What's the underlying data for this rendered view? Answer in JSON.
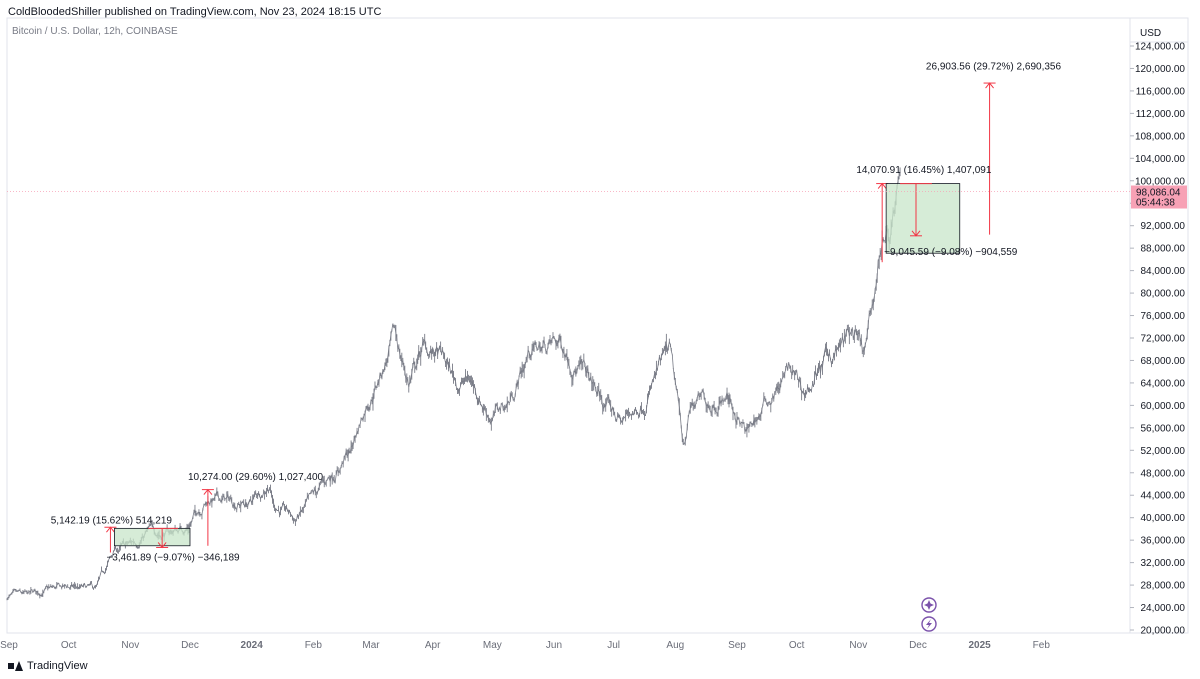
{
  "header": {
    "publisher_line": "ColdBloodedShiller published on TradingView.com, Nov 23, 2024 18:15 UTC",
    "symbol_line": "Bitcoin / U.S. Dollar, 12h, COINBASE"
  },
  "footer": {
    "brand": "TradingView"
  },
  "chart_data": {
    "type": "line",
    "currency_label": "USD",
    "ylim": [
      20000,
      124000
    ],
    "y_ticks": [
      "20,000.00",
      "24,000.00",
      "28,000.00",
      "32,000.00",
      "36,000.00",
      "40,000.00",
      "44,000.00",
      "48,000.00",
      "52,000.00",
      "56,000.00",
      "60,000.00",
      "64,000.00",
      "68,000.00",
      "72,000.00",
      "76,000.00",
      "80,000.00",
      "84,000.00",
      "88,000.00",
      "92,000.00",
      "96,000.00",
      "100,000.00",
      "104,000.00",
      "108,000.00",
      "112,000.00",
      "116,000.00",
      "120,000.00",
      "124,000.00"
    ],
    "x_ticks": [
      {
        "label": "Sep",
        "date": "2023-09-01"
      },
      {
        "label": "Oct",
        "date": "2023-10-01"
      },
      {
        "label": "Nov",
        "date": "2023-11-01"
      },
      {
        "label": "Dec",
        "date": "2023-12-01"
      },
      {
        "label": "2024",
        "date": "2024-01-01",
        "bold": true
      },
      {
        "label": "Feb",
        "date": "2024-02-01"
      },
      {
        "label": "Mar",
        "date": "2024-03-01"
      },
      {
        "label": "Apr",
        "date": "2024-04-01"
      },
      {
        "label": "May",
        "date": "2024-05-01"
      },
      {
        "label": "Jun",
        "date": "2024-06-01"
      },
      {
        "label": "Jul",
        "date": "2024-07-01"
      },
      {
        "label": "Aug",
        "date": "2024-08-01"
      },
      {
        "label": "Sep",
        "date": "2024-09-01"
      },
      {
        "label": "Oct",
        "date": "2024-10-01"
      },
      {
        "label": "Nov",
        "date": "2024-11-01"
      },
      {
        "label": "Dec",
        "date": "2024-12-01"
      },
      {
        "label": "2025",
        "date": "2025-01-01",
        "bold": true
      },
      {
        "label": "Feb",
        "date": "2025-02-01"
      }
    ],
    "price_series": {
      "x": [
        "2023-08-31",
        "2023-09-10",
        "2023-09-20",
        "2023-10-01",
        "2023-10-15",
        "2023-10-24",
        "2023-11-01",
        "2023-11-10",
        "2023-11-20",
        "2023-11-30",
        "2023-12-05",
        "2023-12-10",
        "2023-12-20",
        "2023-12-31",
        "2024-01-10",
        "2024-01-12",
        "2024-01-23",
        "2024-02-01",
        "2024-02-10",
        "2024-02-20",
        "2024-02-28",
        "2024-03-05",
        "2024-03-13",
        "2024-03-20",
        "2024-03-27",
        "2024-04-05",
        "2024-04-13",
        "2024-04-20",
        "2024-05-01",
        "2024-05-10",
        "2024-05-20",
        "2024-06-05",
        "2024-06-15",
        "2024-06-24",
        "2024-07-05",
        "2024-07-14",
        "2024-07-29",
        "2024-08-05",
        "2024-08-09",
        "2024-08-20",
        "2024-08-27",
        "2024-09-06",
        "2024-09-15",
        "2024-09-27",
        "2024-10-05",
        "2024-10-15",
        "2024-10-29",
        "2024-11-04",
        "2024-11-08",
        "2024-11-13",
        "2024-11-17",
        "2024-11-22"
      ],
      "y": [
        25900,
        25800,
        27000,
        27500,
        27000,
        34000,
        35000,
        37500,
        37300,
        38500,
        41500,
        43500,
        43000,
        42500,
        46500,
        42800,
        39500,
        43000,
        47500,
        52000,
        61000,
        65000,
        72000,
        64000,
        70000,
        68500,
        64000,
        64500,
        58000,
        61000,
        70000,
        71000,
        66500,
        61000,
        57000,
        60000,
        69000,
        53000,
        60000,
        61000,
        62000,
        54500,
        60000,
        66000,
        62000,
        67500,
        72500,
        68000,
        76000,
        90000,
        91000,
        98500
      ]
    },
    "current_price": {
      "value": 98086.04,
      "label": "98,086.04",
      "countdown": "05:44:38"
    },
    "measurements": [
      {
        "type": "arrow_up",
        "x": "2023-10-22",
        "y_start": 33800,
        "y_end": 38300
      },
      {
        "type": "box",
        "x_start": "2023-10-24",
        "x_end": "2023-12-01",
        "y_low": 35000,
        "y_high": 38100
      },
      {
        "type": "arrow_down",
        "x": "2023-11-17",
        "y_start": 38100,
        "y_end": 34700
      },
      {
        "type": "arrow_up",
        "x": "2023-12-10",
        "y_start": 35000,
        "y_end": 45000
      },
      {
        "type": "arrow_up",
        "x": "2024-11-13",
        "y_start": 85500,
        "y_end": 99500
      },
      {
        "type": "box",
        "x_start": "2024-11-15",
        "x_end": "2024-12-22",
        "y_low": 87100,
        "y_high": 99500
      },
      {
        "type": "arrow_down",
        "x": "2024-11-30",
        "y_start": 99500,
        "y_end": 90200
      },
      {
        "type": "arrow_up",
        "x": "2025-01-06",
        "y_start": 90400,
        "y_end": 117400
      }
    ],
    "annotations": [
      {
        "text": "5,142.19 (15.62%) 514,219",
        "x": "2023-09-22",
        "y": 39000
      },
      {
        "text": "−3,461.89 (−9.07%) −346,189",
        "x": "2023-10-20",
        "y": 32400
      },
      {
        "text": "10,274.00 (29.60%) 1,027,400",
        "x": "2023-11-30",
        "y": 46700
      },
      {
        "text": "14,070.91 (16.45%) 1,407,091",
        "x": "2024-10-31",
        "y": 101400
      },
      {
        "text": "−9,045.59 (−9.08%) −904,559",
        "x": "2024-11-14",
        "y": 86800
      },
      {
        "text": "26,903.56 (29.72%) 2,690,356",
        "x": "2024-12-05",
        "y": 119800
      }
    ],
    "colors": {
      "measure_line": "#f23645",
      "box_fill": "#c8e6c9",
      "price_line": "#787b86",
      "price_label_bg": "#f7a1b5",
      "watermark": "#7b52ab"
    },
    "icons": [
      "plus-circle-icon",
      "bolt-circle-icon"
    ]
  }
}
